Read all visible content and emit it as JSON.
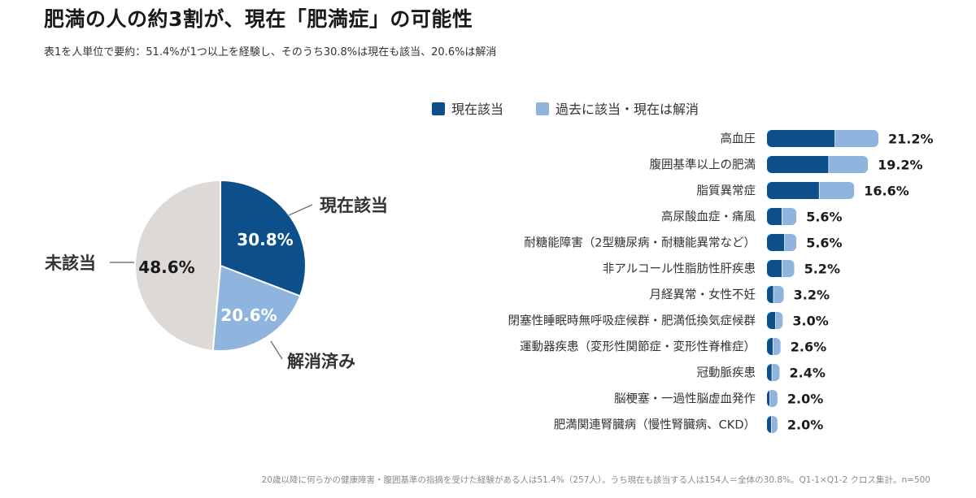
{
  "header": {
    "title": "肥満の人の約3割が、現在「肥満症」の可能性",
    "subtitle": "表1を人単位で要約：51.4%が1つ以上を経験し、そのうち30.8%は現在も該当、20.6%は解消"
  },
  "footnote": "20歳以降に何らかの健康障害・腹囲基準の指摘を受けた経験がある人は51.4%（257人）。うち現在も該当する人は154人＝全体の30.8%。Q1-1×Q1-2 クロス集計。n=500",
  "colors": {
    "current": "#0d4f8b",
    "past": "#8fb4dd",
    "none": "#dcd9d6",
    "separator": "#ffffff",
    "label_dark": "#333333",
    "value_text": "#1a1a1a",
    "leader_line": "#777777"
  },
  "chart_data": [
    {
      "type": "pie",
      "slices": [
        {
          "label": "現在該当",
          "value": 30.8,
          "value_label": "30.8%",
          "color_key": "current"
        },
        {
          "label": "解消済み",
          "value": 20.6,
          "value_label": "20.6%",
          "color_key": "past"
        },
        {
          "label": "未該当",
          "value": 48.6,
          "value_label": "48.6%",
          "color_key": "none"
        }
      ],
      "start": "12 o'clock, clockwise"
    },
    {
      "type": "bar",
      "orientation": "horizontal",
      "stacked": true,
      "legend_position": "top",
      "legend": [
        "現在該当",
        "過去に該当・現在は解消"
      ],
      "categories": [
        "高血圧",
        "腹囲基準以上の肥満",
        "脂質異常症",
        "高尿酸血症・痛風",
        "耐糖能障害（2型糖尿病・耐糖能異常など）",
        "非アルコール性脂肪性肝疾患",
        "月経異常・女性不妊",
        "閉塞性睡眠時無呼吸症候群・肥満低換気症候群",
        "運動器疾患（変形性関節症・変形性脊椎症）",
        "冠動脈疾患",
        "脳梗塞・一過性脳虚血発作",
        "肥満関連腎臓病（慢性腎臓病、CKD）"
      ],
      "series": [
        {
          "name": "現在該当",
          "color_key": "current",
          "values": [
            13.0,
            11.8,
            10.0,
            2.9,
            3.4,
            2.9,
            1.3,
            1.7,
            1.2,
            1.0,
            0.6,
            0.9
          ]
        },
        {
          "name": "過去に該当・現在は解消",
          "color_key": "past",
          "values": [
            8.2,
            7.4,
            6.6,
            2.7,
            2.2,
            2.3,
            1.9,
            1.3,
            1.4,
            1.4,
            1.4,
            1.1
          ]
        }
      ],
      "totals": [
        21.2,
        19.2,
        16.6,
        5.6,
        5.6,
        5.2,
        3.2,
        3.0,
        2.6,
        2.4,
        2.0,
        2.0
      ],
      "total_labels": [
        "21.2%",
        "19.2%",
        "16.6%",
        "5.6%",
        "5.6%",
        "5.2%",
        "3.2%",
        "3.0%",
        "2.6%",
        "2.4%",
        "2.0%",
        "2.0%"
      ],
      "xlim": [
        0,
        21.2
      ],
      "grid": false
    }
  ]
}
